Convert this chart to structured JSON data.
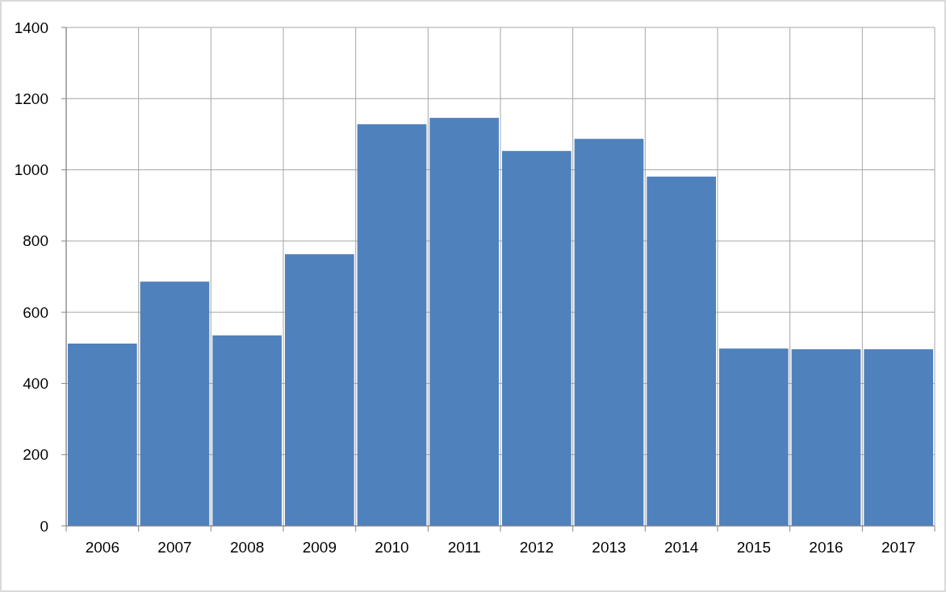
{
  "chart_data": {
    "type": "bar",
    "categories": [
      "2006",
      "2007",
      "2008",
      "2009",
      "2010",
      "2011",
      "2012",
      "2013",
      "2014",
      "2015",
      "2016",
      "2017"
    ],
    "values": [
      512,
      686,
      535,
      763,
      1128,
      1146,
      1053,
      1087,
      981,
      498,
      496,
      496
    ],
    "color": "#4f81bd",
    "ylim": [
      0,
      1400
    ],
    "yticks": [
      0,
      200,
      400,
      600,
      800,
      1000,
      1200,
      1400
    ],
    "grid": true
  }
}
